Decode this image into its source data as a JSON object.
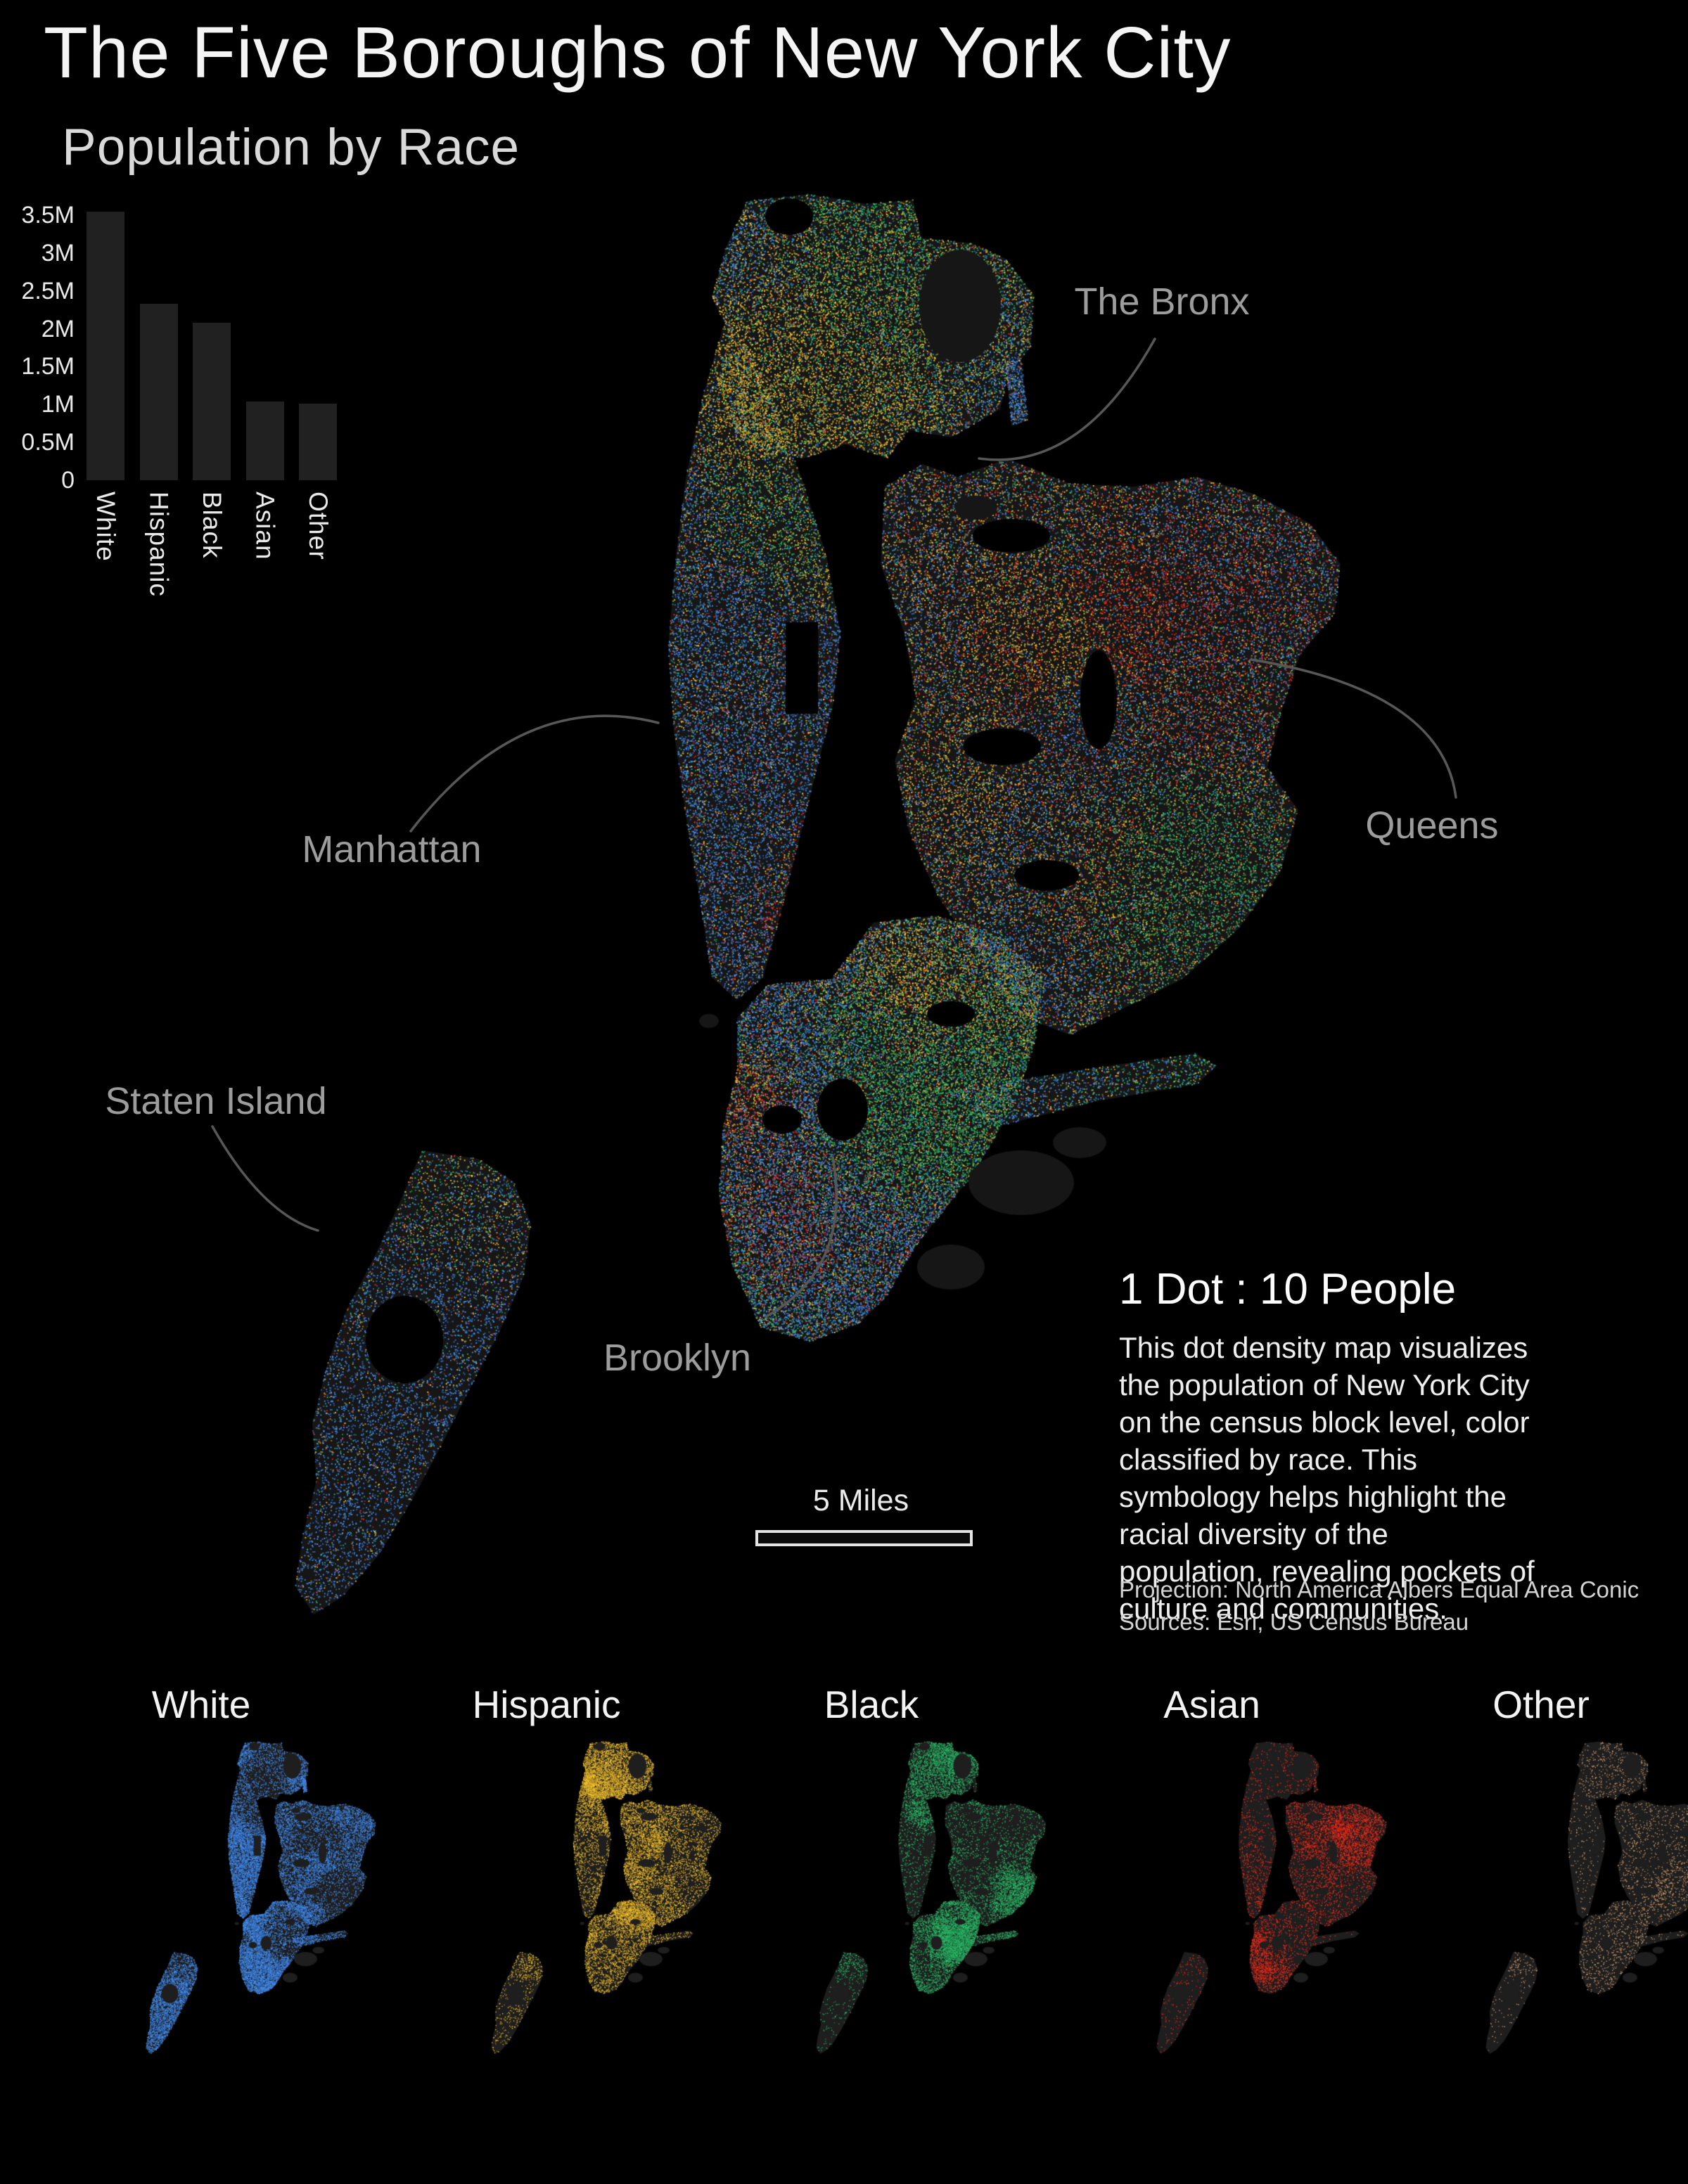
{
  "header": {
    "title": "The Five Boroughs of New York City",
    "subtitle": "Population by Race"
  },
  "chart_data": {
    "type": "bar",
    "title": "Population by Race",
    "categories": [
      "White",
      "Hispanic",
      "Black",
      "Asian",
      "Other"
    ],
    "values": [
      3550000,
      2330000,
      2080000,
      1040000,
      1010000
    ],
    "values_millions": [
      3.55,
      2.33,
      2.08,
      1.04,
      1.01
    ],
    "y_tick_labels": [
      "3.5M",
      "3M",
      "2.5M",
      "2M",
      "1.5M",
      "1M",
      "0.5M",
      "0"
    ],
    "y_tick_values": [
      3500000,
      3000000,
      2500000,
      2000000,
      1500000,
      1000000,
      500000,
      0
    ],
    "ylim": [
      0,
      3550000
    ],
    "xlabel": "",
    "ylabel": "",
    "grid": false,
    "legend_position": "none",
    "bar_color": "#212121"
  },
  "map": {
    "dot_ratio_heading": "1 Dot : 10 People",
    "description": "This dot density map visualizes the population of New York City on the census block level, color classified by race. This symbology helps highlight the racial diversity of the population, revealing pockets of culture and communities.",
    "projection_note": "Projection: North America Albers Equal Area Conic",
    "sources_note": "Sources: Esri, US Census Bureau",
    "scale_bar_label": "5 Miles",
    "boroughs": [
      {
        "name": "The Bronx"
      },
      {
        "name": "Queens"
      },
      {
        "name": "Manhattan"
      },
      {
        "name": "Staten Island"
      },
      {
        "name": "Brooklyn"
      }
    ]
  },
  "small_multiples": [
    {
      "label": "White",
      "color": "#3b7ad1"
    },
    {
      "label": "Hispanic",
      "color": "#d9a929"
    },
    {
      "label": "Black",
      "color": "#27a25b"
    },
    {
      "label": "Asian",
      "color": "#d8281a"
    },
    {
      "label": "Other",
      "color": "#b98c64"
    }
  ],
  "palette": {
    "background": "#000000",
    "land_dark": "#161616",
    "land_mini": "#1e1e1e",
    "race_colors": {
      "white": "#3b7ad1",
      "hispanic": "#d9a929",
      "black": "#27a25b",
      "asian": "#d8281a",
      "other": "#b98c64"
    },
    "borough_label_color": "#9c9c9c",
    "leader_line_color": "#575757"
  }
}
